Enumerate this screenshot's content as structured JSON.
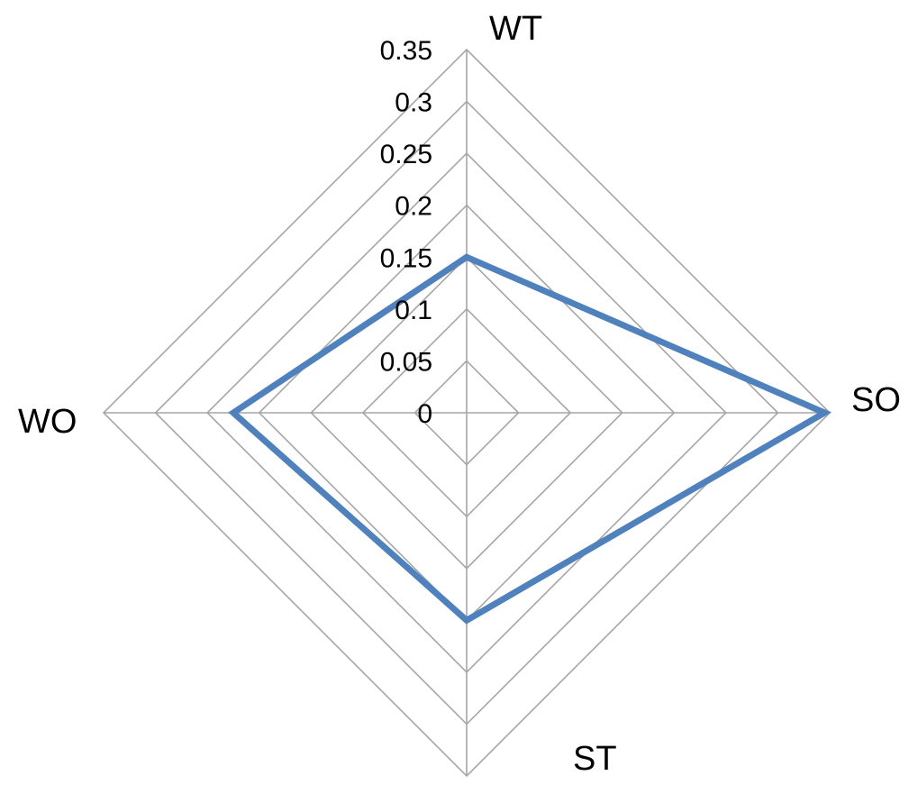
{
  "chart_data": {
    "type": "radar",
    "axes": [
      "WT",
      "SO",
      "ST",
      "WO"
    ],
    "ticks": [
      "0",
      "0.05",
      "0.1",
      "0.15",
      "0.2",
      "0.25",
      "0.3",
      "0.35"
    ],
    "rlim": [
      0,
      0.35
    ],
    "grid": true,
    "series": [
      {
        "values": [
          0.15,
          0.345,
          0.2,
          0.225
        ],
        "color": "#4F81BD"
      }
    ],
    "grid_color": "#A6A6A6"
  }
}
